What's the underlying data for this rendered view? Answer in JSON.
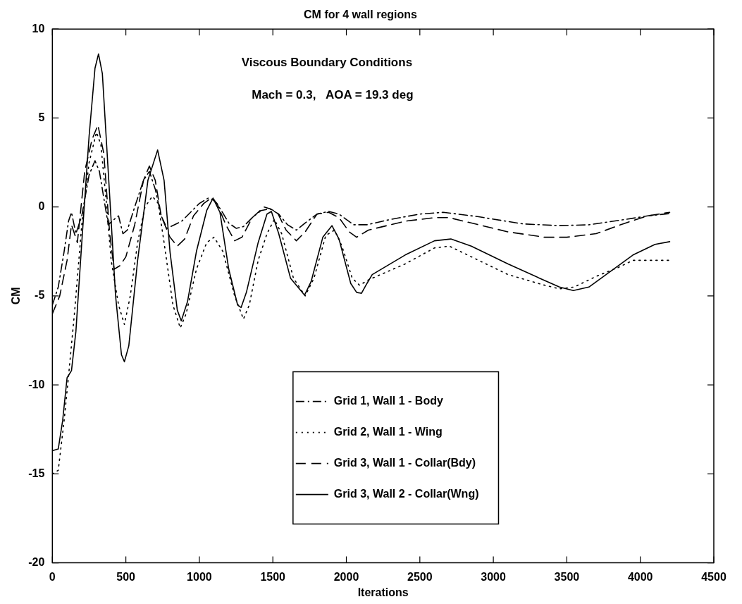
{
  "chart_data": {
    "type": "line",
    "title": "CM for 4 wall regions",
    "xlabel": "Iterations",
    "ylabel": "CM",
    "annotations": [
      "Viscous Boundary Conditions",
      "Mach = 0.3,   AOA = 19.3 deg"
    ],
    "xlim": [
      0,
      4500
    ],
    "xticks": [
      0,
      500,
      1000,
      1500,
      2000,
      2500,
      3000,
      3500,
      4000,
      4500
    ],
    "ylim": [
      -20,
      10
    ],
    "yticks": [
      -20,
      -15,
      -10,
      -5,
      0,
      5,
      10
    ],
    "grid": false,
    "legend": "bottom",
    "marker": "none",
    "series": [
      {
        "name": "Grid 1, Wall 1 - Body",
        "color": "#000000",
        "line_style": "dashdot",
        "x": [
          0,
          40,
          80,
          110,
          130,
          160,
          200,
          250,
          290,
          320,
          350,
          380,
          420,
          450,
          480,
          510,
          560,
          620,
          660,
          700,
          740,
          780,
          830,
          880,
          940,
          1000,
          1060,
          1100,
          1150,
          1200,
          1250,
          1300,
          1360,
          1420,
          1480,
          1540,
          1600,
          1660,
          1720,
          1800,
          1880,
          1950,
          2050,
          2140,
          2300,
          2500,
          2660,
          2900,
          3200,
          3450,
          3650,
          3900,
          4050,
          4200
        ],
        "values": [
          -5.5,
          -4.5,
          -2.5,
          -0.8,
          -0.3,
          -1.5,
          -0.5,
          1.8,
          2.6,
          2,
          0.5,
          -1,
          -0.7,
          -0.5,
          -1.5,
          -1.3,
          0,
          1.5,
          2,
          1,
          -0.5,
          -1.2,
          -1,
          -0.8,
          -0.3,
          0.2,
          0.5,
          0.4,
          -0.2,
          -0.9,
          -1.2,
          -1.1,
          -0.6,
          -0.2,
          -0.1,
          -0.4,
          -1,
          -1.3,
          -0.9,
          -0.4,
          -0.25,
          -0.4,
          -1,
          -1,
          -0.7,
          -0.4,
          -0.3,
          -0.55,
          -0.95,
          -1.05,
          -1,
          -0.7,
          -0.5,
          -0.37
        ]
      },
      {
        "name": "Grid 2, Wall 1 - Wing",
        "color": "#000000",
        "line_style": "dotted",
        "x": [
          0,
          40,
          80,
          110,
          150,
          200,
          250,
          300,
          330,
          370,
          400,
          450,
          490,
          530,
          580,
          630,
          680,
          720,
          760,
          820,
          870,
          910,
          980,
          1050,
          1100,
          1160,
          1240,
          1300,
          1340,
          1400,
          1460,
          1510,
          1560,
          1640,
          1720,
          1780,
          1860,
          1920,
          1970,
          2040,
          2090,
          2150,
          2400,
          2600,
          2700,
          2900,
          3100,
          3350,
          3450,
          3550,
          3700,
          3850,
          3950,
          4100,
          4200
        ],
        "values": [
          -15,
          -14.8,
          -12,
          -9.5,
          -6,
          -1,
          2.5,
          4.2,
          3.5,
          0,
          -3,
          -5.5,
          -6.6,
          -5,
          -2,
          0,
          0.6,
          0.2,
          -2,
          -5.5,
          -6.8,
          -6,
          -3.5,
          -2,
          -1.7,
          -2.5,
          -5,
          -6.3,
          -5.5,
          -3,
          -1.5,
          -0.7,
          -1.5,
          -4,
          -5,
          -4,
          -1.6,
          -1.3,
          -2.2,
          -4,
          -4.4,
          -4.1,
          -3.2,
          -2.3,
          -2.2,
          -3,
          -3.8,
          -4.4,
          -4.6,
          -4.5,
          -3.9,
          -3.4,
          -3,
          -3,
          -3
        ]
      },
      {
        "name": "Grid 3, Wall 1 - Collar(Bdy)",
        "color": "#000000",
        "line_style": "dashed",
        "x": [
          0,
          50,
          100,
          130,
          170,
          220,
          270,
          310,
          350,
          390,
          420,
          460,
          500,
          560,
          620,
          660,
          700,
          740,
          800,
          850,
          900,
          960,
          1030,
          1080,
          1120,
          1180,
          1240,
          1290,
          1360,
          1440,
          1480,
          1530,
          1590,
          1660,
          1720,
          1800,
          1880,
          1950,
          2020,
          2070,
          2150,
          2400,
          2600,
          2700,
          2900,
          3100,
          3350,
          3500,
          3700,
          3900,
          4050,
          4200
        ],
        "values": [
          -6,
          -5,
          -3,
          -1,
          -2,
          2,
          3.8,
          4.6,
          3,
          -1.5,
          -3.5,
          -3.3,
          -2.8,
          -1,
          1.5,
          2.3,
          1.5,
          -0.5,
          -1.7,
          -2.2,
          -1.8,
          -0.5,
          0.2,
          0.5,
          0.2,
          -1,
          -1.9,
          -1.7,
          -0.6,
          0,
          -0.1,
          -0.3,
          -1.3,
          -1.9,
          -1.4,
          -0.4,
          -0.3,
          -0.6,
          -1.4,
          -1.7,
          -1.3,
          -0.8,
          -0.6,
          -0.6,
          -1,
          -1.4,
          -1.7,
          -1.7,
          -1.5,
          -0.9,
          -0.5,
          -0.3
        ]
      },
      {
        "name": "Grid 3, Wall 2 - Collar(Wng)",
        "color": "#000000",
        "line_style": "solid",
        "x": [
          0,
          40,
          70,
          100,
          130,
          160,
          200,
          250,
          290,
          314,
          340,
          380,
          430,
          470,
          490,
          520,
          580,
          650,
          716,
          760,
          800,
          850,
          877,
          920,
          980,
          1050,
          1093,
          1140,
          1200,
          1260,
          1284,
          1320,
          1400,
          1460,
          1490,
          1540,
          1620,
          1716,
          1760,
          1840,
          1902,
          1950,
          2030,
          2070,
          2103,
          2140,
          2176,
          2400,
          2600,
          2711,
          2850,
          3100,
          3314,
          3450,
          3544,
          3650,
          3800,
          3950,
          4100,
          4200
        ],
        "values": [
          -13.7,
          -13.6,
          -12,
          -9.6,
          -9.2,
          -7,
          -2,
          4,
          7.8,
          8.6,
          7.5,
          2,
          -5,
          -8.3,
          -8.7,
          -7.8,
          -3,
          1.5,
          3.2,
          1.5,
          -2.5,
          -5.8,
          -6.4,
          -5.3,
          -2.5,
          -0.2,
          0.5,
          -0.3,
          -3.5,
          -5.5,
          -5.65,
          -4.8,
          -2,
          -0.4,
          -0.25,
          -1.5,
          -4,
          -4.95,
          -4.2,
          -1.7,
          -1.05,
          -1.8,
          -4.3,
          -4.8,
          -4.85,
          -4.3,
          -3.8,
          -2.7,
          -1.9,
          -1.8,
          -2.2,
          -3.2,
          -4,
          -4.5,
          -4.7,
          -4.5,
          -3.6,
          -2.7,
          -2.1,
          -1.95
        ]
      }
    ]
  }
}
